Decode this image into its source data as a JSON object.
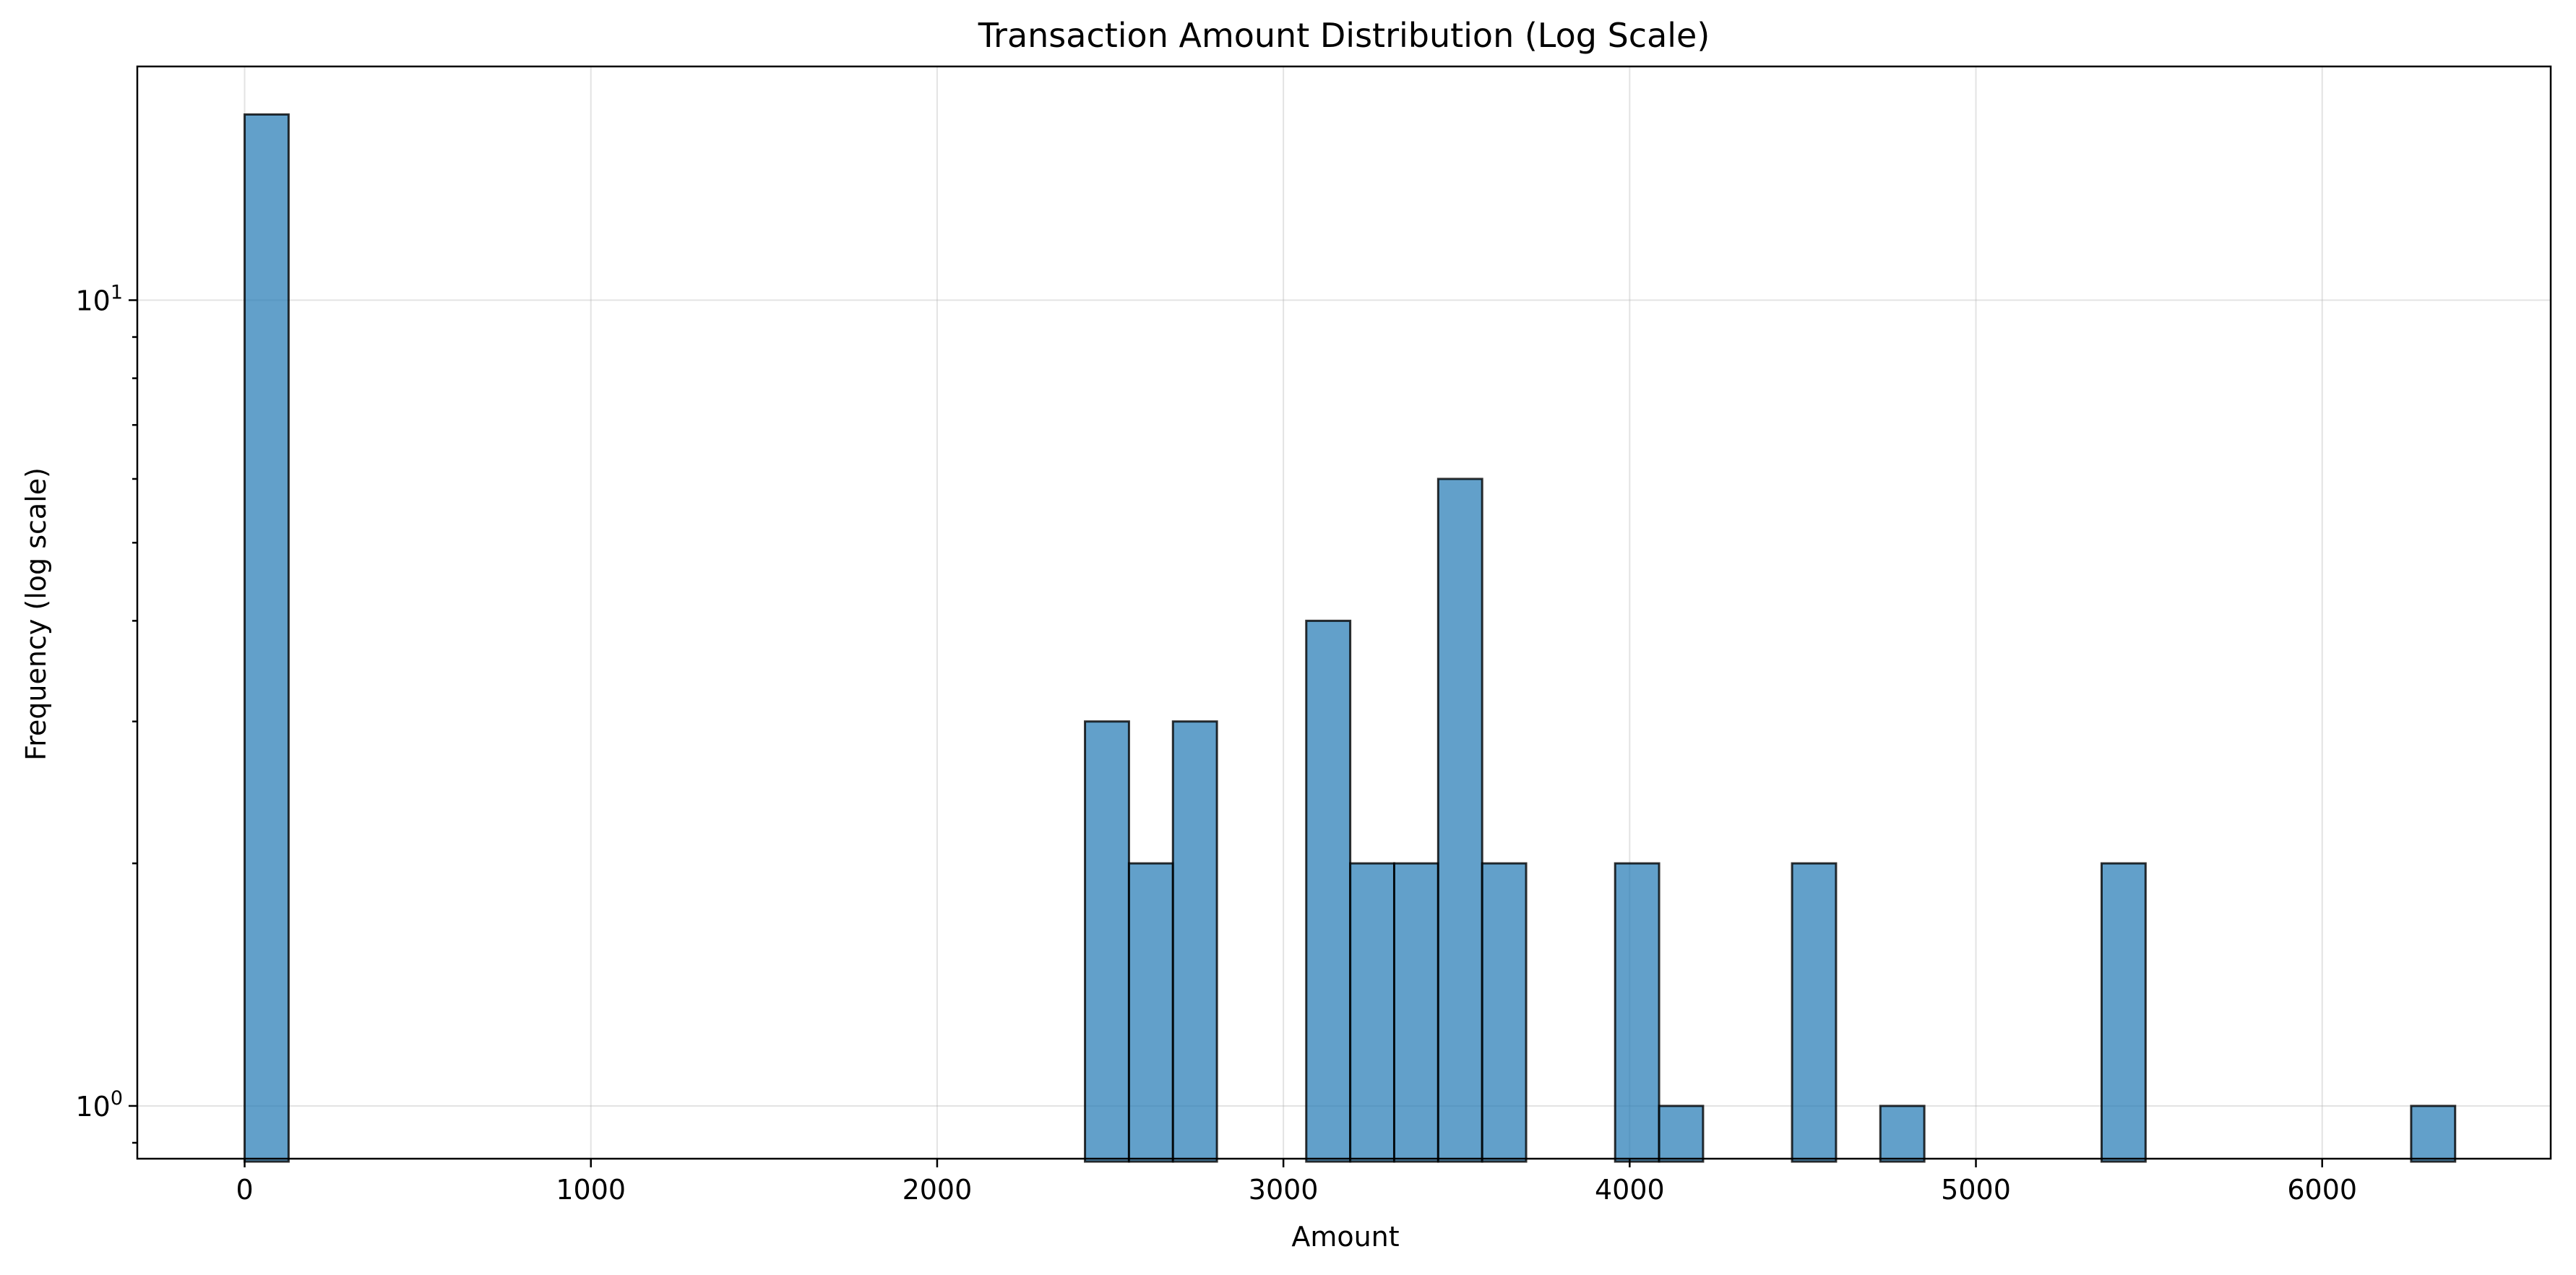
{
  "chart_data": {
    "type": "bar",
    "title": "Transaction Amount Distribution (Log Scale)",
    "xlabel": "Amount",
    "ylabel": "Frequency (log scale)",
    "y_scale": "log",
    "xlim": [
      -310,
      6660
    ],
    "ylim": [
      0.86,
      19.5
    ],
    "grid": true,
    "x_ticks": [
      0,
      1000,
      2000,
      3000,
      4000,
      5000,
      6000
    ],
    "y_ticks": [
      {
        "value": 1,
        "base": "10",
        "exp": "0"
      },
      {
        "value": 10,
        "base": "10",
        "exp": "1"
      }
    ],
    "bin_width": 127,
    "bins": [
      {
        "start": 0,
        "count": 17
      },
      {
        "start": 2427,
        "count": 3
      },
      {
        "start": 2554,
        "count": 2
      },
      {
        "start": 2681,
        "count": 3
      },
      {
        "start": 3066,
        "count": 4
      },
      {
        "start": 3193,
        "count": 2
      },
      {
        "start": 3320,
        "count": 2
      },
      {
        "start": 3447,
        "count": 6
      },
      {
        "start": 3574,
        "count": 2
      },
      {
        "start": 3958,
        "count": 2
      },
      {
        "start": 4085,
        "count": 1
      },
      {
        "start": 4469,
        "count": 2
      },
      {
        "start": 4724,
        "count": 1
      },
      {
        "start": 5363,
        "count": 2
      },
      {
        "start": 6257,
        "count": 1
      }
    ],
    "colors": {
      "bar_fill": "#1f77b4",
      "bar_edge": "#000000"
    }
  }
}
